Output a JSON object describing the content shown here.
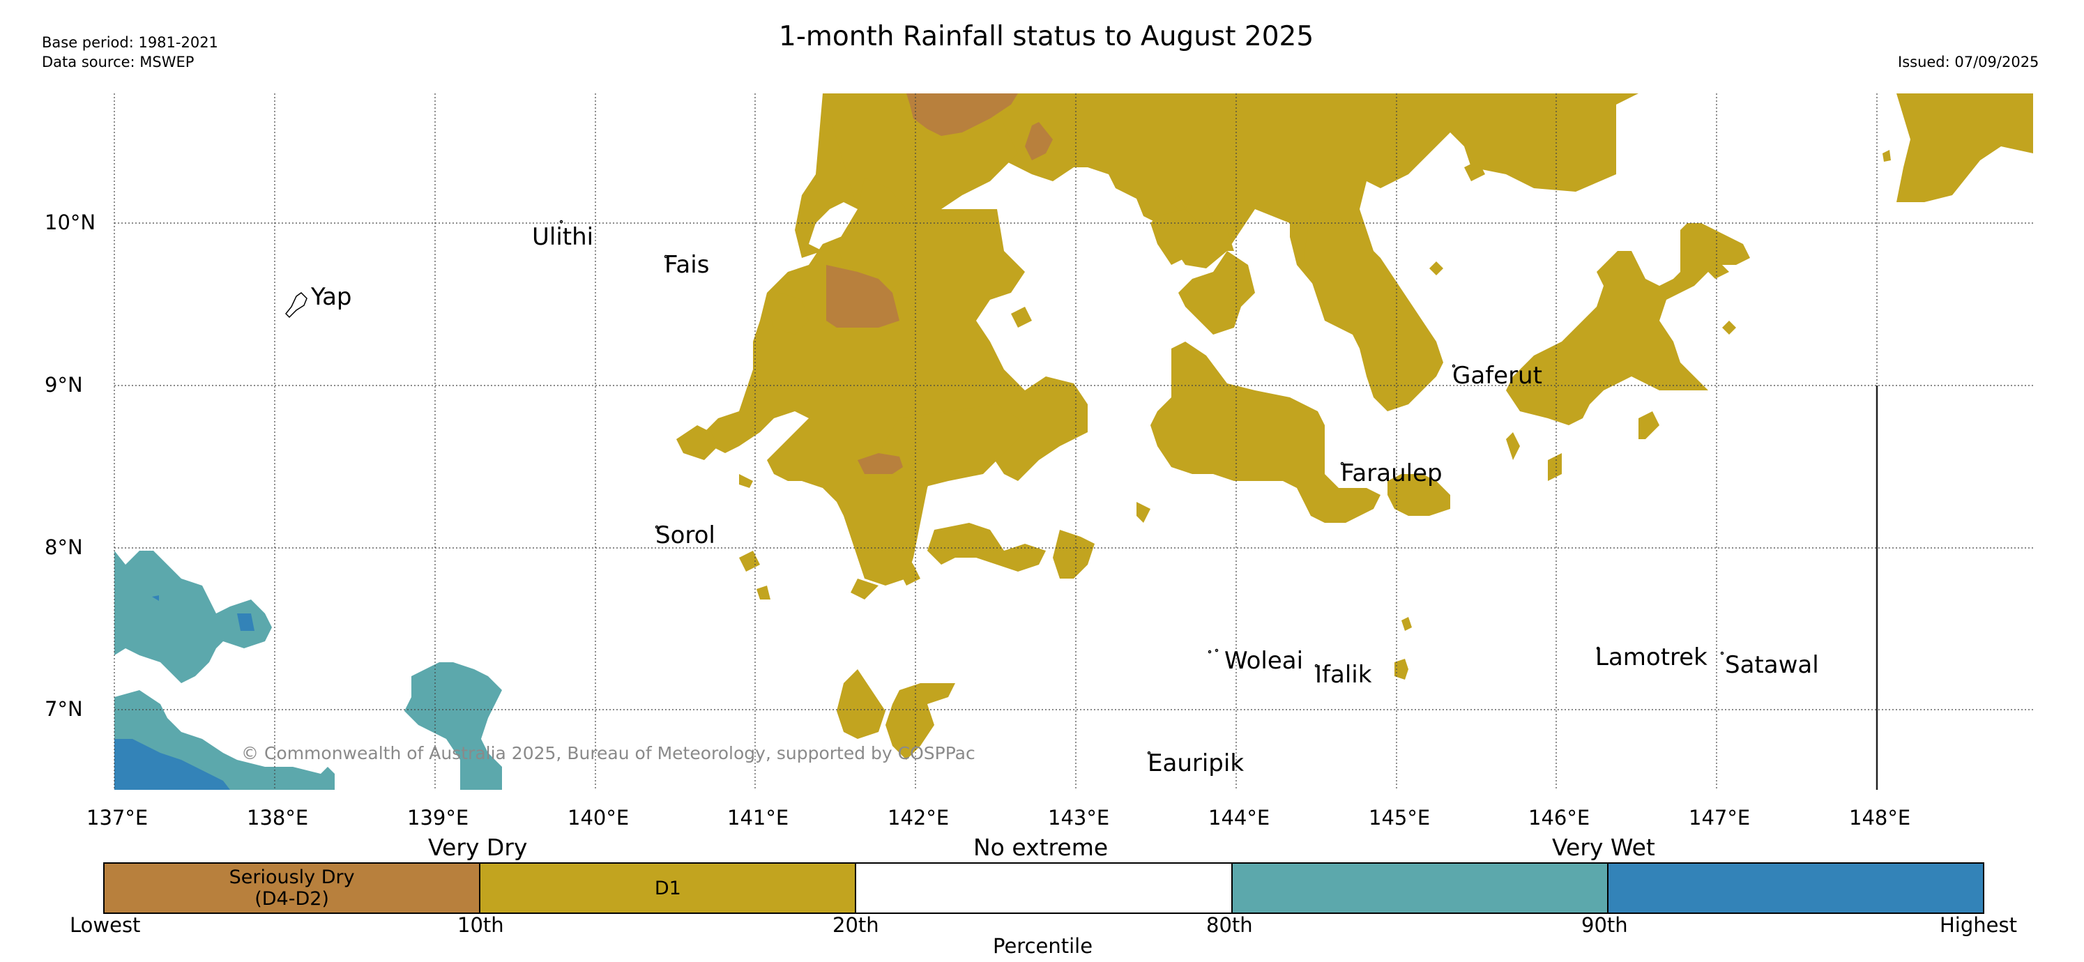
{
  "header": {
    "base_period": "Base period: 1981-2021",
    "data_source": "Data source: MSWEP",
    "title": "1-month Rainfall status to August 2025",
    "issued": "Issued: 07/09/2025"
  },
  "map": {
    "lon_ticks": [
      "137°E",
      "138°E",
      "139°E",
      "140°E",
      "141°E",
      "142°E",
      "143°E",
      "144°E",
      "145°E",
      "146°E",
      "147°E",
      "148°E"
    ],
    "lat_ticks": [
      "10°N",
      "9°N",
      "8°N",
      "7°N"
    ],
    "places": [
      {
        "name": "Ulithi"
      },
      {
        "name": "Fais"
      },
      {
        "name": "Yap"
      },
      {
        "name": "Gaferut"
      },
      {
        "name": "Faraulep"
      },
      {
        "name": "Sorol"
      },
      {
        "name": "Woleai"
      },
      {
        "name": "Ifalik"
      },
      {
        "name": "Lamotrek"
      },
      {
        "name": "Satawal"
      },
      {
        "name": "Eauripik"
      }
    ],
    "credit": "© Commonwealth of Australia 2025, Bureau of Meteorology, supported by COSPPac"
  },
  "legend": {
    "categories": {
      "very_dry": "Very Dry",
      "no_extreme": "No extreme",
      "very_wet": "Very Wet"
    },
    "boxes": [
      {
        "label_line1": "Seriously Dry",
        "label_line2": "(D4-D2)",
        "color": "#b8803d"
      },
      {
        "label_line1": "D1",
        "label_line2": "",
        "color": "#c2a41f"
      },
      {
        "label_line1": "",
        "label_line2": "",
        "color": "#ffffff"
      },
      {
        "label_line1": "",
        "label_line2": "",
        "color": "#5ca8ac"
      },
      {
        "label_line1": "",
        "label_line2": "",
        "color": "#3383b8"
      }
    ],
    "percentiles": [
      "Lowest",
      "10th",
      "20th",
      "80th",
      "90th",
      "Highest"
    ],
    "axis_label": "Percentile"
  },
  "colors": {
    "seriously_dry": "#b8803d",
    "d1": "#c2a41f",
    "wet_90": "#5ca8ac",
    "wet_highest": "#3383b8",
    "grid": "#444444"
  }
}
